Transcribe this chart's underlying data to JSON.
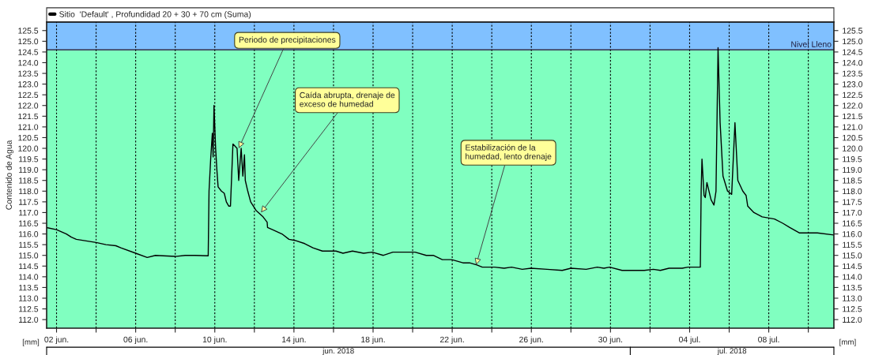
{
  "chart_data": {
    "type": "line",
    "ylabel": "Contenido de Agua",
    "legend": "top",
    "grid": "x",
    "line_style": "solid",
    "xlim": [
      "2018-06-01T12:00",
      "2018-07-11T07:00"
    ],
    "xticks": [
      {
        "value": "2018-06-02",
        "label": "02 jun."
      },
      {
        "value": "2018-06-04",
        "label": null
      },
      {
        "value": "2018-06-06",
        "label": "06 jun."
      },
      {
        "value": "2018-06-08",
        "label": null
      },
      {
        "value": "2018-06-10",
        "label": "10 jun."
      },
      {
        "value": "2018-06-12",
        "label": null
      },
      {
        "value": "2018-06-14",
        "label": "14 jun."
      },
      {
        "value": "2018-06-16",
        "label": null
      },
      {
        "value": "2018-06-18",
        "label": "18 jun."
      },
      {
        "value": "2018-06-20",
        "label": null
      },
      {
        "value": "2018-06-22",
        "label": "22 jun."
      },
      {
        "value": "2018-06-24",
        "label": null
      },
      {
        "value": "2018-06-26",
        "label": "26 jun."
      },
      {
        "value": "2018-06-28",
        "label": null
      },
      {
        "value": "2018-06-30",
        "label": "30 jun."
      },
      {
        "value": "2018-07-02",
        "label": null
      },
      {
        "value": "2018-07-04",
        "label": "04 jul."
      },
      {
        "value": "2018-07-06",
        "label": null
      },
      {
        "value": "2018-07-08",
        "label": "08 jul."
      },
      {
        "value": "2018-07-10",
        "label": null
      }
    ],
    "ylim": [
      111.6,
      125.9
    ],
    "yticks": [
      {
        "value": 112,
        "label": "112.0"
      },
      {
        "value": 112.5,
        "label": "112.5"
      },
      {
        "value": 113,
        "label": "113.0"
      },
      {
        "value": 113.5,
        "label": "113.5"
      },
      {
        "value": 114,
        "label": "114.0"
      },
      {
        "value": 114.5,
        "label": "114.5"
      },
      {
        "value": 115,
        "label": "115.0"
      },
      {
        "value": 115.5,
        "label": "115.5"
      },
      {
        "value": 116,
        "label": "116.0"
      },
      {
        "value": 116.5,
        "label": "116.5"
      },
      {
        "value": 117,
        "label": "117.0"
      },
      {
        "value": 117.5,
        "label": "117.5"
      },
      {
        "value": 118,
        "label": "118.0"
      },
      {
        "value": 118.5,
        "label": "118.5"
      },
      {
        "value": 119,
        "label": "119.0"
      },
      {
        "value": 119.5,
        "label": "119.5"
      },
      {
        "value": 120,
        "label": "120.0"
      },
      {
        "value": 120.5,
        "label": "120.5"
      },
      {
        "value": 121,
        "label": "121.0"
      },
      {
        "value": 121.5,
        "label": "121.5"
      },
      {
        "value": 122,
        "label": "122.0"
      },
      {
        "value": 122.5,
        "label": "122.5"
      },
      {
        "value": 123,
        "label": "123.0"
      },
      {
        "value": 123.5,
        "label": "123.5"
      },
      {
        "value": 124,
        "label": "124.0"
      },
      {
        "value": 124.5,
        "label": "124.5"
      },
      {
        "value": 125,
        "label": "125.0"
      },
      {
        "value": 125.5,
        "label": "125.5"
      }
    ],
    "y2lim": [
      111.6,
      125.9
    ],
    "y2ticks": [
      {
        "value": 112,
        "label": "112.0"
      },
      {
        "value": 112.5,
        "label": "112.5"
      },
      {
        "value": 113,
        "label": "113.0"
      },
      {
        "value": 113.5,
        "label": "113.5"
      },
      {
        "value": 114,
        "label": "114.0"
      },
      {
        "value": 114.5,
        "label": "114.5"
      },
      {
        "value": 115,
        "label": "115.0"
      },
      {
        "value": 115.5,
        "label": "115.5"
      },
      {
        "value": 116,
        "label": "116.0"
      },
      {
        "value": 116.5,
        "label": "116.5"
      },
      {
        "value": 117,
        "label": "117.0"
      },
      {
        "value": 117.5,
        "label": "117.5"
      },
      {
        "value": 118,
        "label": "118.0"
      },
      {
        "value": 118.5,
        "label": "118.5"
      },
      {
        "value": 119,
        "label": "119.0"
      },
      {
        "value": 119.5,
        "label": "119.5"
      },
      {
        "value": 120,
        "label": "120.0"
      },
      {
        "value": 120.5,
        "label": "120.5"
      },
      {
        "value": 121,
        "label": "121.0"
      },
      {
        "value": 121.5,
        "label": "121.5"
      },
      {
        "value": 122,
        "label": "122.0"
      },
      {
        "value": 122.5,
        "label": "122.5"
      },
      {
        "value": 123,
        "label": "123.0"
      },
      {
        "value": 123.5,
        "label": "123.5"
      },
      {
        "value": 124,
        "label": "124.0"
      },
      {
        "value": 124.5,
        "label": "124.5"
      },
      {
        "value": 125,
        "label": "125.0"
      },
      {
        "value": 125.5,
        "label": "125.5"
      }
    ],
    "bands": [
      {
        "axis": "y",
        "from": 111.6,
        "to": 124.6,
        "color": "#80ffc0"
      },
      {
        "axis": "y",
        "from": 124.6,
        "to": 125.9,
        "color": "#80c0ff"
      }
    ],
    "ref_lines": [
      {
        "axis": "y",
        "value": 124.6,
        "label": "Nivel Lleno",
        "color": "#404860",
        "line_style": "solid"
      }
    ],
    "annotations": [
      {
        "text": "Periodo de precipitaciones",
        "x": "2018-06-11T05:00",
        "y": 120.0
      },
      {
        "text": "Caída abrupta, drenaje de\nexceso de humedad",
        "x": "2018-06-12T08:00",
        "y": 117.0
      },
      {
        "text": "Estabilización de la\nhumedad, lento drenaje",
        "x": "2018-06-23T05:00",
        "y": 114.55
      },
      "[mm]",
      "[mm]",
      "jun. 2018",
      "jul. 2018"
    ],
    "series": [
      {
        "name": "Sitio  'Default' , Profundidad 20 + 30 + 70 cm (Suma)",
        "color": "#000000",
        "x": [
          "2018-06-01T12:00",
          "2018-06-02T00:00",
          "2018-06-02T12:00",
          "2018-06-02T18:00",
          "2018-06-03T00:00",
          "2018-06-04T00:00",
          "2018-06-04T12:00",
          "2018-06-05T00:00",
          "2018-06-05T06:00",
          "2018-06-06T00:00",
          "2018-06-06T14:00",
          "2018-06-07T00:00",
          "2018-06-08T00:00",
          "2018-06-08T12:00",
          "2018-06-09T00:00",
          "2018-06-09T16:00",
          "2018-06-09T17:00",
          "2018-06-09T19:00",
          "2018-06-09T21:00",
          "2018-06-09T22:00",
          "2018-06-09T23:00",
          "2018-06-10T01:00",
          "2018-06-10T02:30",
          "2018-06-10T04:00",
          "2018-06-10T08:00",
          "2018-06-10T11:30",
          "2018-06-10T14:00",
          "2018-06-10T17:00",
          "2018-06-10T19:00",
          "2018-06-10T22:00",
          "2018-06-11T03:00",
          "2018-06-11T05:00",
          "2018-06-11T08:00",
          "2018-06-11T10:00",
          "2018-06-11T12:00",
          "2018-06-11T13:00",
          "2018-06-11T16:00",
          "2018-06-11T19:30",
          "2018-06-12T02:00",
          "2018-06-12T10:30",
          "2018-06-12T15:30",
          "2018-06-12T16:00",
          "2018-06-12T22:00",
          "2018-06-13T09:30",
          "2018-06-13T18:00",
          "2018-06-14T01:00",
          "2018-06-14T13:00",
          "2018-06-14T23:00",
          "2018-06-15T10:30",
          "2018-06-16T03:00",
          "2018-06-16T11:30",
          "2018-06-16T23:00",
          "2018-06-17T12:30",
          "2018-06-17T23:00",
          "2018-06-18T12:30",
          "2018-06-19T00:00",
          "2018-06-20T03:00",
          "2018-06-20T16:30",
          "2018-06-21T01:00",
          "2018-06-21T12:00",
          "2018-06-21T23:30",
          "2018-06-22T13:00",
          "2018-06-22T21:00",
          "2018-06-23T06:00",
          "2018-06-23T12:30",
          "2018-06-24T03:30",
          "2018-06-24T15:00",
          "2018-06-25T00:00",
          "2018-06-25T13:00",
          "2018-06-25T23:30",
          "2018-06-26T19:00",
          "2018-06-27T13:30",
          "2018-06-28T00:00",
          "2018-06-28T18:30",
          "2018-06-29T08:00",
          "2018-06-29T16:00",
          "2018-06-29T23:00",
          "2018-06-30T14:00",
          "2018-07-01T06:30",
          "2018-07-01T17:00",
          "2018-07-02T04:00",
          "2018-07-02T12:30",
          "2018-07-02T23:00",
          "2018-07-03T15:00",
          "2018-07-03T22:00",
          "2018-07-04T13:00",
          "2018-07-04T14:00",
          "2018-07-04T15:00",
          "2018-07-04T17:30",
          "2018-07-04T19:00",
          "2018-07-04T21:00",
          "2018-07-05T02:00",
          "2018-07-05T05:30",
          "2018-07-05T08:00",
          "2018-07-05T10:30",
          "2018-07-05T13:00",
          "2018-07-05T16:30",
          "2018-07-05T22:00",
          "2018-07-06T03:00",
          "2018-07-06T07:00",
          "2018-07-06T10:30",
          "2018-07-06T16:30",
          "2018-07-06T20:30",
          "2018-07-06T22:30",
          "2018-07-07T06:00",
          "2018-07-07T16:00",
          "2018-07-08T07:00",
          "2018-07-08T17:00",
          "2018-07-09T01:30",
          "2018-07-09T13:00",
          "2018-07-10T11:00",
          "2018-07-11T07:00"
        ],
        "values": [
          116.3,
          116.2,
          116.0,
          115.85,
          115.75,
          115.6,
          115.5,
          115.45,
          115.35,
          115.1,
          114.9,
          115.0,
          114.95,
          115.0,
          115.0,
          114.98,
          118.0,
          119.5,
          120.7,
          119.6,
          122.0,
          120.0,
          119.0,
          118.2,
          118.0,
          117.9,
          117.5,
          117.3,
          117.3,
          120.2,
          120.0,
          118.5,
          120.0,
          118.7,
          119.7,
          118.5,
          118.0,
          117.5,
          117.1,
          116.8,
          116.55,
          116.3,
          116.2,
          116.0,
          115.75,
          115.7,
          115.55,
          115.35,
          115.2,
          115.2,
          115.1,
          115.2,
          115.1,
          115.15,
          115.0,
          115.15,
          115.15,
          115.0,
          115.0,
          114.8,
          114.8,
          114.65,
          114.65,
          114.55,
          114.45,
          114.45,
          114.4,
          114.45,
          114.35,
          114.4,
          114.35,
          114.3,
          114.4,
          114.35,
          114.45,
          114.4,
          114.45,
          114.3,
          114.3,
          114.3,
          114.35,
          114.3,
          114.4,
          114.4,
          114.45,
          114.45,
          118.0,
          119.5,
          117.8,
          117.7,
          118.4,
          117.6,
          117.35,
          118.0,
          124.7,
          121.2,
          118.7,
          118.0,
          117.85,
          121.2,
          118.5,
          118.0,
          117.8,
          117.3,
          117.0,
          116.8,
          116.7,
          116.5,
          116.3,
          116.05,
          116.05,
          115.95
        ]
      }
    ]
  }
}
